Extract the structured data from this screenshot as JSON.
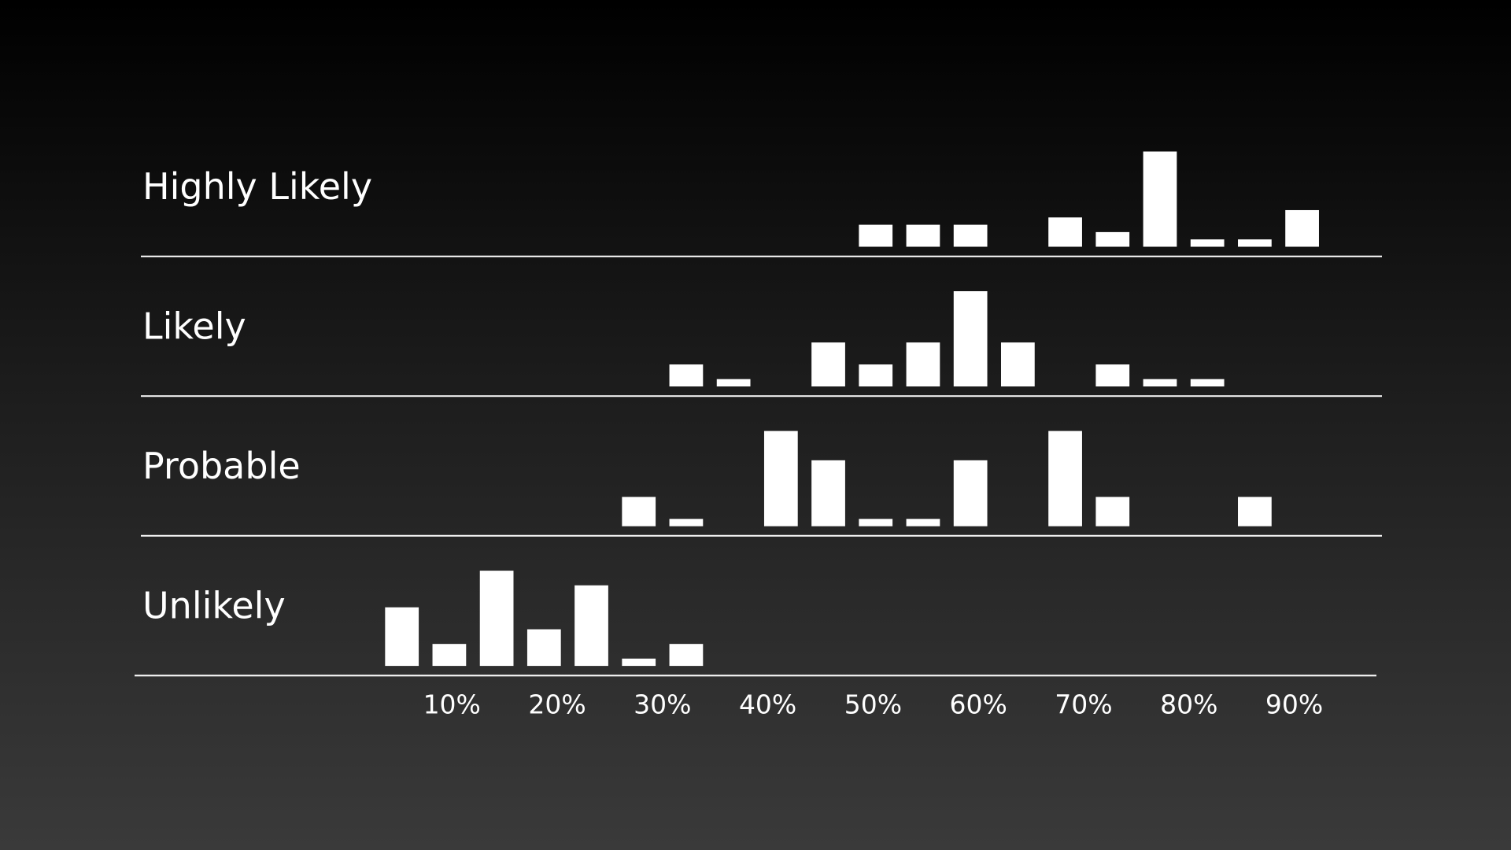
{
  "chart_data": {
    "type": "histogram",
    "bins": [
      3,
      7.5,
      12,
      16.5,
      21,
      25.5,
      30,
      34.5,
      39,
      43.5,
      48,
      52.5,
      57,
      61.5,
      66,
      70.5,
      75,
      79.5,
      84,
      88.5,
      93
    ],
    "xlim": [
      3,
      93
    ],
    "xticks": [
      {
        "value": 10,
        "label": "10%"
      },
      {
        "value": 20,
        "label": "20%"
      },
      {
        "value": 30,
        "label": "30%"
      },
      {
        "value": 40,
        "label": "40%"
      },
      {
        "value": 50,
        "label": "50%"
      },
      {
        "value": 60,
        "label": "60%"
      },
      {
        "value": 70,
        "label": "70%"
      },
      {
        "value": 80,
        "label": "80%"
      },
      {
        "value": 90,
        "label": "90%"
      }
    ],
    "ylim": [
      0,
      13
    ],
    "series": [
      {
        "name": "Highly Likely",
        "color": "#ffffff",
        "values": [
          0,
          0,
          0,
          0,
          0,
          0,
          0,
          0,
          0,
          0,
          3,
          3,
          3,
          0,
          4,
          2,
          13,
          1,
          1,
          5
        ]
      },
      {
        "name": "Likely",
        "color": "#ffffff",
        "values": [
          0,
          0,
          0,
          0,
          0,
          0,
          3,
          1,
          0,
          6,
          3,
          6,
          13,
          6,
          0,
          3,
          1,
          1,
          0,
          0
        ]
      },
      {
        "name": "Probable",
        "color": "#ffffff",
        "values": [
          0,
          0,
          0,
          0,
          0,
          4,
          1,
          0,
          13,
          9,
          1,
          1,
          9,
          0,
          13,
          4,
          0,
          0,
          4,
          0
        ]
      },
      {
        "name": "Unlikely",
        "color": "#ffffff",
        "values": [
          8,
          3,
          13,
          5,
          11,
          1,
          3,
          0,
          0,
          0,
          0,
          0,
          0,
          0,
          0,
          0,
          0,
          0,
          0,
          0
        ]
      }
    ]
  }
}
